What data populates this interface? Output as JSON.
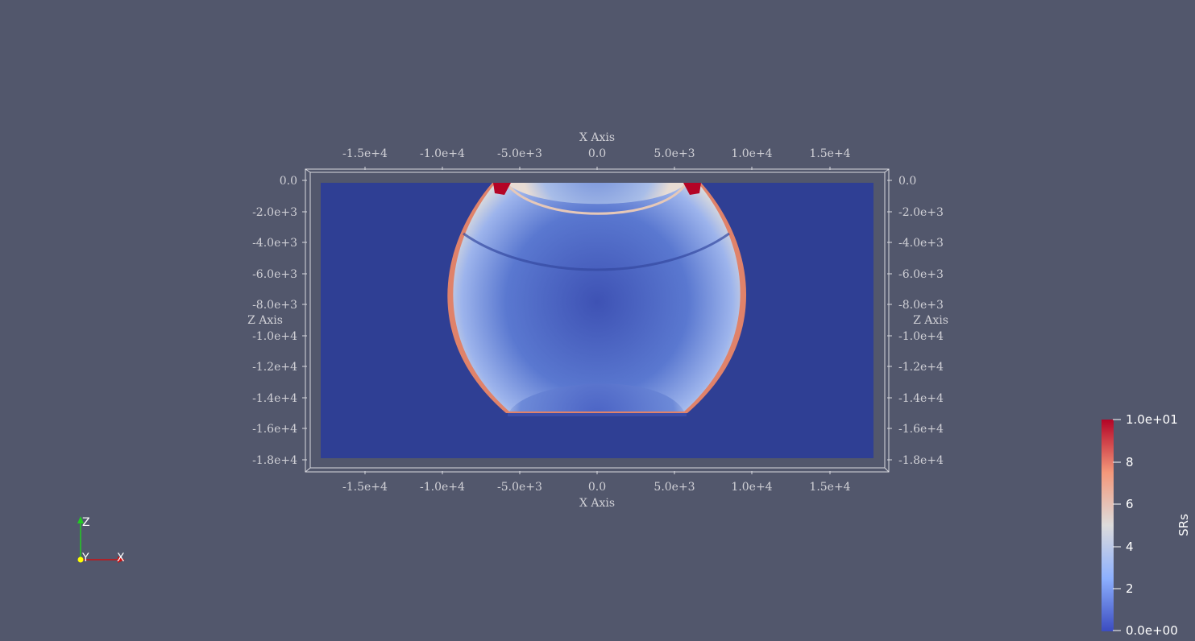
{
  "axes": {
    "x_title_top": "X Axis",
    "x_title_bottom": "X Axis",
    "z_title_left": "Z Axis",
    "z_title_right": "Z Axis",
    "x_ticks": [
      "-1.5e+4",
      "-1.0e+4",
      "-5.0e+3",
      "0.0",
      "5.0e+3",
      "1.0e+4",
      "1.5e+4"
    ],
    "z_ticks": [
      "0.0",
      "-2.0e+3",
      "-4.0e+3",
      "-6.0e+3",
      "-8.0e+3",
      "-1.0e+4",
      "-1.2e+4",
      "-1.4e+4",
      "-1.6e+4",
      "-1.8e+4"
    ]
  },
  "colorbar": {
    "title": "SRs",
    "labels": [
      "1.0e+01",
      "8",
      "6",
      "4",
      "2",
      "0.0e+00"
    ],
    "colors": [
      "#b40426",
      "#f08a6b",
      "#dddcdc",
      "#8db0fe",
      "#3b4cc0"
    ]
  },
  "orientation": {
    "z_label": "Z",
    "y_label": "Y",
    "x_label": "X",
    "z_color": "#22cc22",
    "x_color": "#cc1111",
    "y_color": "#ffff00"
  },
  "colors": {
    "background": "#52576c",
    "field_base": "#2f3f94"
  }
}
